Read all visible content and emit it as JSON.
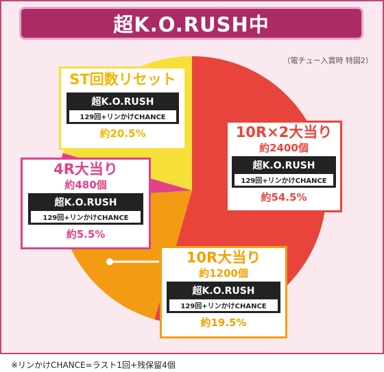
{
  "header": {
    "title": "超K.O.RUSH中"
  },
  "caption": "（電チュー入賞時 特図2）",
  "chart_data": {
    "type": "pie",
    "slices": [
      {
        "name": "10R×2大当り",
        "percent": 54.5,
        "color": "#e8443c"
      },
      {
        "name": "10R大当り",
        "percent": 19.5,
        "color": "#f39b12"
      },
      {
        "name": "4R大当り",
        "percent": 5.5,
        "color": "#e0418a"
      },
      {
        "name": "ST回数リセット",
        "percent": 20.5,
        "color": "#f7e03a"
      }
    ]
  },
  "boxes": {
    "st_reset": {
      "title": "ST回数リセット",
      "mode": "超K.O.RUSH",
      "sub": "129回+リンかけCHANCE",
      "percent": "約20.5%"
    },
    "big_20r": {
      "title": "10R×2大当り",
      "amount": "約2400個",
      "mode": "超K.O.RUSH",
      "sub": "129回+リンかけCHANCE",
      "percent": "約54.5%"
    },
    "hit_4r": {
      "title": "4R大当り",
      "amount": "約480個",
      "mode": "超K.O.RUSH",
      "sub": "129回+リンかけCHANCE",
      "percent": "約5.5%"
    },
    "hit_10r": {
      "title": "10R大当り",
      "amount": "約1200個",
      "mode": "超K.O.RUSH",
      "sub": "129回+リンかけCHANCE",
      "percent": "約19.5%"
    }
  },
  "footnote": "※リンかけCHANCE=ラスト1回+残保留4個"
}
